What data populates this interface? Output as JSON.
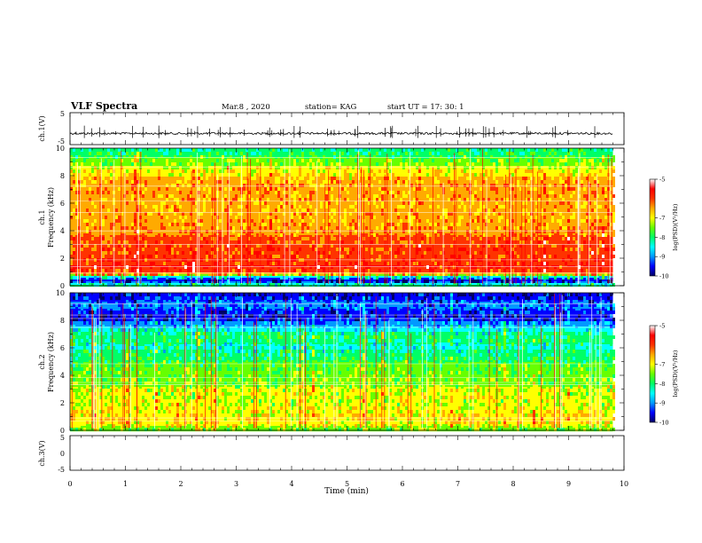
{
  "header": {
    "title": "VLF Spectra",
    "date": "Mar.8 , 2020",
    "station": "station= KAG",
    "start": "start UT = 17: 30: 1"
  },
  "colors": {
    "palette": [
      "#000066",
      "#0000ff",
      "#0099ff",
      "#00ffff",
      "#00ff66",
      "#66ff00",
      "#ffff00",
      "#ffaa00",
      "#ff3300",
      "#ff0000",
      "#ffffff"
    ],
    "trace": "#000000"
  },
  "chart_data": [
    {
      "type": "line",
      "id": "ch1-waveform",
      "ylabel": "ch.1(V)",
      "ylim": [
        -5,
        5
      ],
      "yticks": [
        "5",
        "-5"
      ],
      "xlim": [
        0,
        10
      ],
      "baseline_v": -1.5
    },
    {
      "type": "heatmap",
      "id": "ch1-spectrogram",
      "ylabel_line1": "ch.1",
      "ylabel_line2": "Frequency (kHz)",
      "ylim": [
        0,
        10
      ],
      "yticks": [
        "0",
        "2",
        "4",
        "6",
        "8",
        "10"
      ],
      "xlim": [
        0,
        10
      ],
      "data_end_min": 9.8,
      "colorbar": {
        "range": [
          -10,
          -5
        ],
        "ticks": [
          "-5",
          "-7",
          "-8",
          "-9",
          "-10"
        ],
        "label": "log(PSD)(V²/Hz)"
      },
      "profile_khz": [
        0.0,
        0.5,
        1.0,
        1.5,
        2.0,
        3.0,
        4.0,
        5.0,
        6.0,
        7.0,
        8.0,
        9.0,
        10.0
      ],
      "profile_level": [
        5.0,
        0.0,
        7.6,
        8.6,
        8.1,
        7.9,
        7.3,
        6.8,
        6.6,
        7.2,
        6.5,
        5.2,
        3.5
      ]
    },
    {
      "type": "heatmap",
      "id": "ch2-spectrogram",
      "ylabel_line1": "ch.2",
      "ylabel_line2": "Frequency (kHz)",
      "ylim": [
        0,
        10
      ],
      "yticks": [
        "0",
        "2",
        "4",
        "6",
        "8",
        "10"
      ],
      "xlim": [
        0,
        10
      ],
      "data_end_min": 9.8,
      "colorbar": {
        "range": [
          -10,
          -5
        ],
        "ticks": [
          "-5",
          "-7",
          "-8",
          "-9",
          "-10"
        ],
        "label": "log(PSD)(V²/Hz)"
      },
      "profile_khz": [
        0.0,
        0.5,
        1.0,
        2.0,
        3.0,
        4.0,
        5.0,
        6.0,
        7.0,
        8.0,
        8.3,
        9.0,
        9.5,
        10.0
      ],
      "profile_level": [
        4.5,
        6.0,
        6.4,
        5.6,
        5.6,
        4.9,
        4.5,
        3.4,
        3.8,
        1.5,
        0.5,
        1.8,
        1.3,
        0.4
      ]
    },
    {
      "type": "line",
      "id": "ch3-waveform",
      "ylabel": "ch.3(V)",
      "ylim": [
        -5,
        5
      ],
      "yticks": [
        "5",
        "0",
        "-5"
      ],
      "xlim": [
        0,
        10
      ],
      "xlabel": "Time (min)",
      "xticks": [
        "0",
        "1",
        "2",
        "3",
        "4",
        "5",
        "6",
        "7",
        "8",
        "9",
        "10"
      ]
    }
  ]
}
